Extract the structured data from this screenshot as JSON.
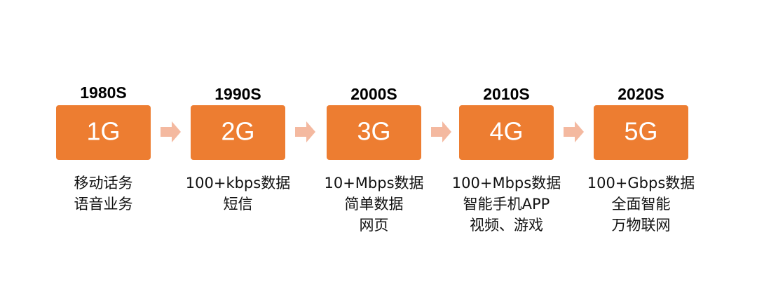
{
  "nodes": [
    {
      "era": "1980S",
      "label": "1G",
      "lines": [
        "移动话务",
        "语音业务"
      ]
    },
    {
      "era": "1990S",
      "label": "2G",
      "lines": [
        "100+kbps数据",
        "短信"
      ]
    },
    {
      "era": "2000S",
      "label": "3G",
      "lines": [
        "10+Mbps数据",
        "简单数据",
        "网页"
      ]
    },
    {
      "era": "2010S",
      "label": "4G",
      "lines": [
        "100+Mbps数据",
        "智能手机APP",
        "视频、游戏"
      ]
    },
    {
      "era": "2020S",
      "label": "5G",
      "lines": [
        "100+Gbps数据",
        "全面智能",
        "万物联网"
      ]
    }
  ]
}
